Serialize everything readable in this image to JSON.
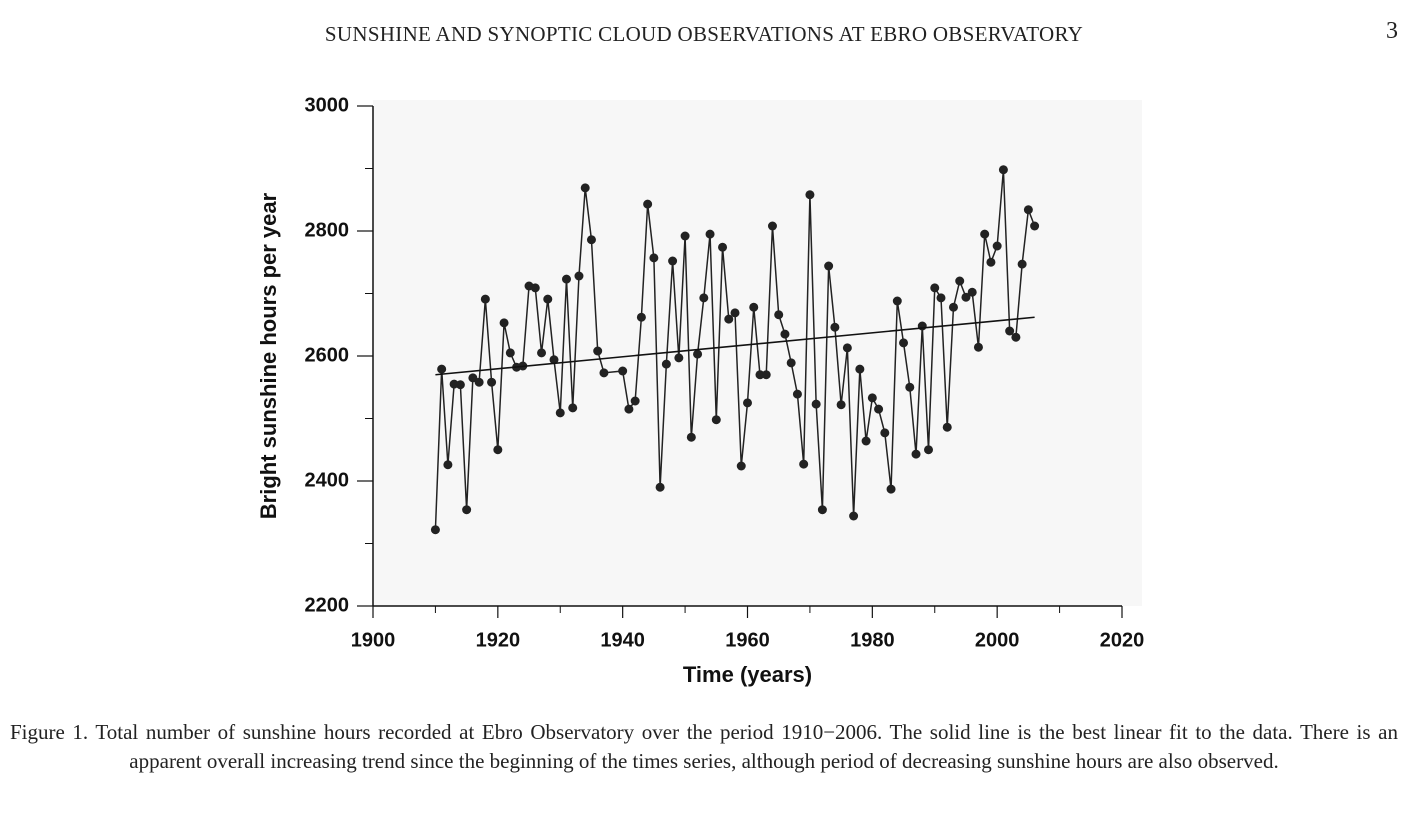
{
  "header": {
    "running_title": "SUNSHINE AND SYNOPTIC CLOUD OBSERVATIONS AT EBRO OBSERVATORY",
    "page_number": "3"
  },
  "chart_data": {
    "type": "line",
    "markers": true,
    "xlabel": "Time (years)",
    "ylabel": "Bright sunshine hours per year",
    "xlim": [
      1900,
      2020
    ],
    "ylim": [
      2200,
      3000
    ],
    "xticks": [
      1900,
      1920,
      1940,
      1960,
      1980,
      2000,
      2020
    ],
    "xminor_ticks": [
      1910,
      1930,
      1950,
      1970,
      1990,
      2010
    ],
    "yticks": [
      2200,
      2400,
      2600,
      2800,
      3000
    ],
    "yminor_ticks": [
      2300,
      2500,
      2700,
      2900
    ],
    "x": [
      1910,
      1911,
      1912,
      1913,
      1914,
      1915,
      1916,
      1917,
      1918,
      1919,
      1920,
      1921,
      1922,
      1923,
      1924,
      1925,
      1926,
      1927,
      1928,
      1929,
      1930,
      1931,
      1932,
      1933,
      1934,
      1935,
      1936,
      1937,
      1940,
      1941,
      1942,
      1943,
      1944,
      1945,
      1946,
      1947,
      1948,
      1949,
      1950,
      1951,
      1952,
      1953,
      1954,
      1955,
      1956,
      1957,
      1958,
      1959,
      1960,
      1961,
      1962,
      1963,
      1964,
      1965,
      1966,
      1967,
      1968,
      1969,
      1970,
      1971,
      1972,
      1973,
      1974,
      1975,
      1976,
      1977,
      1978,
      1979,
      1980,
      1981,
      1982,
      1983,
      1984,
      1985,
      1986,
      1987,
      1988,
      1989,
      1990,
      1991,
      1992,
      1993,
      1994,
      1995,
      1996,
      1997,
      1998,
      1999,
      2000,
      2001,
      2002,
      2003,
      2004,
      2005,
      2006
    ],
    "series": [
      {
        "color": "#222222",
        "values": [
          2322,
          2579,
          2426,
          2555,
          2554,
          2354,
          2565,
          2558,
          2691,
          2558,
          2450,
          2653,
          2605,
          2582,
          2584,
          2712,
          2709,
          2605,
          2691,
          2594,
          2509,
          2723,
          2517,
          2728,
          2869,
          2786,
          2608,
          2573,
          2576,
          2515,
          2528,
          2662,
          2843,
          2757,
          2390,
          2587,
          2752,
          2597,
          2792,
          2470,
          2603,
          2693,
          2795,
          2498,
          2774,
          2659,
          2669,
          2424,
          2525,
          2678,
          2570,
          2570,
          2808,
          2666,
          2635,
          2589,
          2539,
          2427,
          2858,
          2523,
          2354,
          2744,
          2646,
          2522,
          2613,
          2344,
          2579,
          2464,
          2533,
          2515,
          2477,
          2387,
          2688,
          2621,
          2550,
          2443,
          2648,
          2450,
          2709,
          2693,
          2486,
          2678,
          2720,
          2694,
          2702,
          2614,
          2795,
          2750,
          2776,
          2898,
          2640,
          2630,
          2747,
          2834,
          2808
        ]
      }
    ],
    "fit_line": {
      "color": "#111111",
      "x": [
        1910,
        2006
      ],
      "values": [
        2570,
        2662
      ]
    },
    "plot_background": "#f7f7f7"
  },
  "caption": "Figure 1. Total number of sunshine hours recorded at Ebro Observatory over the period 1910−2006. The solid line is the best linear fit to the data. There is an apparent overall increasing trend since the beginning of the times series, although period of decreasing sunshine hours are also observed."
}
